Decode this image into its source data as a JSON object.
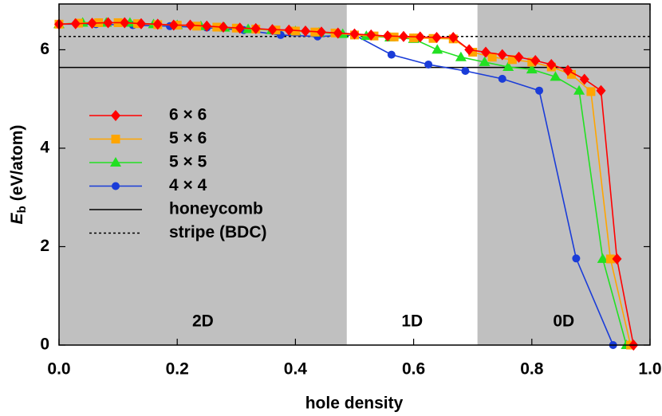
{
  "chart_data": {
    "type": "line",
    "xlabel": "hole density",
    "ylabel": {
      "symbol": "E",
      "subscript": "b",
      "unit": "(eV/atom)"
    },
    "xlim": [
      0,
      1
    ],
    "ylim": [
      0,
      6.93
    ],
    "xticks": [
      {
        "value": 0,
        "label": "0.0"
      },
      0.2,
      0.4,
      0.6,
      0.8,
      {
        "value": 1,
        "label": "1.0"
      }
    ],
    "yticks": [
      0,
      2,
      4,
      6
    ],
    "legend": "left",
    "regions": [
      {
        "label": "2D",
        "range": [
          0,
          0.487
        ],
        "color": "#c0c0c0"
      },
      {
        "label": "1D",
        "range": [
          0.487,
          0.708
        ],
        "color": "#ffffff"
      },
      {
        "label": "0D",
        "range": [
          0.708,
          1
        ],
        "color": "#c0c0c0"
      }
    ],
    "hlines": [
      {
        "name": "honeycomb",
        "value": 5.64,
        "style": "solid",
        "color": "#000000"
      },
      {
        "name": "stripe (BDC)",
        "value": 6.27,
        "style": "dashed",
        "color": "#000000"
      }
    ],
    "series": [
      {
        "name": "6 × 6",
        "color": "#ff0000",
        "marker": "diamond",
        "x": [
          0,
          0.028,
          0.056,
          0.083,
          0.111,
          0.139,
          0.167,
          0.194,
          0.222,
          0.25,
          0.278,
          0.306,
          0.333,
          0.361,
          0.389,
          0.417,
          0.444,
          0.472,
          0.5,
          0.528,
          0.556,
          0.583,
          0.611,
          0.639,
          0.667,
          0.694,
          0.722,
          0.75,
          0.778,
          0.806,
          0.833,
          0.861,
          0.889,
          0.917,
          0.944,
          0.972
        ],
        "values": [
          6.52,
          6.53,
          6.54,
          6.55,
          6.55,
          6.53,
          6.52,
          6.5,
          6.5,
          6.48,
          6.46,
          6.44,
          6.43,
          6.41,
          6.4,
          6.38,
          6.36,
          6.34,
          6.32,
          6.3,
          6.28,
          6.27,
          6.26,
          6.25,
          6.25,
          6.0,
          5.95,
          5.9,
          5.85,
          5.78,
          5.7,
          5.58,
          5.4,
          5.17,
          1.75,
          0
        ]
      },
      {
        "name": "5 × 6",
        "color": "#ffa500",
        "marker": "square",
        "x": [
          0,
          0.033,
          0.067,
          0.1,
          0.133,
          0.167,
          0.2,
          0.233,
          0.267,
          0.3,
          0.333,
          0.367,
          0.4,
          0.433,
          0.467,
          0.5,
          0.533,
          0.567,
          0.6,
          0.633,
          0.667,
          0.7,
          0.733,
          0.767,
          0.8,
          0.833,
          0.867,
          0.9,
          0.933,
          0.967
        ],
        "values": [
          6.52,
          6.54,
          6.55,
          6.55,
          6.53,
          6.51,
          6.5,
          6.48,
          6.46,
          6.44,
          6.42,
          6.4,
          6.38,
          6.36,
          6.34,
          6.3,
          6.28,
          6.26,
          6.24,
          6.23,
          6.22,
          5.95,
          5.85,
          5.8,
          5.75,
          5.65,
          5.5,
          5.15,
          1.75,
          0
        ]
      },
      {
        "name": "5 × 5",
        "color": "#22e022",
        "marker": "triangle",
        "x": [
          0,
          0.04,
          0.08,
          0.12,
          0.16,
          0.2,
          0.24,
          0.28,
          0.32,
          0.36,
          0.4,
          0.44,
          0.48,
          0.52,
          0.56,
          0.6,
          0.64,
          0.68,
          0.72,
          0.76,
          0.8,
          0.84,
          0.88,
          0.92,
          0.96
        ],
        "values": [
          6.52,
          6.55,
          6.55,
          6.55,
          6.52,
          6.5,
          6.48,
          6.45,
          6.42,
          6.4,
          6.38,
          6.35,
          6.32,
          6.28,
          6.25,
          6.22,
          6.0,
          5.85,
          5.75,
          5.65,
          5.6,
          5.45,
          5.17,
          1.75,
          0
        ]
      },
      {
        "name": "4 × 4",
        "color": "#1a3cd8",
        "marker": "circle",
        "x": [
          0,
          0.0625,
          0.125,
          0.1875,
          0.25,
          0.3125,
          0.375,
          0.4375,
          0.5,
          0.5625,
          0.625,
          0.6875,
          0.75,
          0.8125,
          0.875,
          0.9375
        ],
        "values": [
          6.52,
          6.52,
          6.5,
          6.48,
          6.45,
          6.4,
          6.3,
          6.27,
          6.3,
          5.9,
          5.7,
          5.57,
          5.41,
          5.17,
          1.76,
          0
        ]
      }
    ]
  }
}
